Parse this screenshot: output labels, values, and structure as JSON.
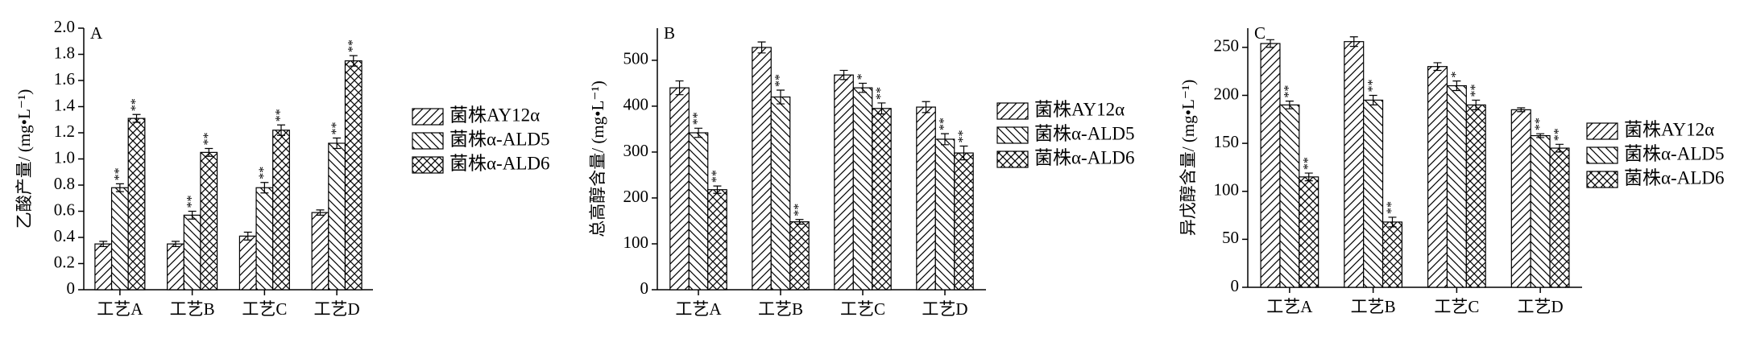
{
  "chart_data": [
    {
      "type": "bar",
      "label": "A",
      "ylabel": "乙酸产量/ (mg•L⁻¹)",
      "categories": [
        "工艺A",
        "工艺B",
        "工艺C",
        "工艺D"
      ],
      "series": [
        {
          "name": "菌株AY12α",
          "color": "#000000",
          "hatch": "/",
          "values": [
            0.35,
            0.35,
            0.41,
            0.59
          ],
          "errors": [
            0.02,
            0.02,
            0.03,
            0.02
          ],
          "annotations": [
            null,
            null,
            null,
            null
          ]
        },
        {
          "name": "菌株α-ALD5",
          "color": "#000000",
          "hatch": "\\",
          "values": [
            0.78,
            0.57,
            0.78,
            1.12
          ],
          "errors": [
            0.03,
            0.03,
            0.04,
            0.04
          ],
          "annotations": [
            "**",
            "**",
            "**",
            "**"
          ]
        },
        {
          "name": "菌株α-ALD6",
          "color": "#000000",
          "hatch": "x",
          "values": [
            1.31,
            1.05,
            1.22,
            1.75
          ],
          "errors": [
            0.03,
            0.03,
            0.04,
            0.04
          ],
          "annotations": [
            "**",
            "**",
            "**",
            "**"
          ]
        }
      ],
      "ylim": [
        0,
        2.0
      ],
      "yticks": [
        0,
        0.2,
        0.4,
        0.6,
        0.8,
        {
          "value": 1,
          "label": "1.0"
        },
        1.2,
        1.4,
        1.6,
        1.8,
        {
          "value": 2,
          "label": "2.0"
        }
      ],
      "legend": "right"
    },
    {
      "type": "bar",
      "label": "B",
      "ylabel": "总高醇含量/ (mg•L⁻¹)",
      "categories": [
        "工艺A",
        "工艺B",
        "工艺C",
        "工艺D"
      ],
      "series": [
        {
          "name": "菌株AY12α",
          "color": "#000000",
          "hatch": "/",
          "values": [
            440,
            528,
            468,
            398
          ],
          "errors": [
            15,
            12,
            10,
            12
          ],
          "annotations": [
            null,
            null,
            null,
            null
          ]
        },
        {
          "name": "菌株α-ALD5",
          "color": "#000000",
          "hatch": "\\",
          "values": [
            342,
            420,
            440,
            328
          ],
          "errors": [
            10,
            15,
            10,
            12
          ],
          "annotations": [
            "**",
            "**",
            "*",
            "**"
          ]
        },
        {
          "name": "菌株α-ALD6",
          "color": "#000000",
          "hatch": "x",
          "values": [
            218,
            148,
            395,
            298
          ],
          "errors": [
            8,
            5,
            12,
            15
          ],
          "annotations": [
            "**",
            "**",
            "**",
            "**"
          ]
        }
      ],
      "ylim": [
        0,
        570
      ],
      "yticks": [
        0,
        100,
        200,
        300,
        400,
        500
      ],
      "legend": "upper right"
    },
    {
      "type": "bar",
      "label": "C",
      "ylabel": "异戊醇含量/ (mg•L⁻¹)",
      "categories": [
        "工艺A",
        "工艺B",
        "工艺C",
        "工艺D"
      ],
      "series": [
        {
          "name": "菌株AY12α",
          "color": "#000000",
          "hatch": "/",
          "values": [
            254,
            256,
            230,
            185
          ],
          "errors": [
            4,
            5,
            4,
            2
          ],
          "annotations": [
            null,
            null,
            null,
            null
          ]
        },
        {
          "name": "菌株α-ALD5",
          "color": "#000000",
          "hatch": "\\",
          "values": [
            190,
            195,
            210,
            158
          ],
          "errors": [
            4,
            5,
            5,
            2
          ],
          "annotations": [
            "**",
            "**",
            "*",
            "**"
          ]
        },
        {
          "name": "菌株α-ALD6",
          "color": "#000000",
          "hatch": "x",
          "values": [
            115,
            68,
            190,
            145
          ],
          "errors": [
            4,
            5,
            5,
            4
          ],
          "annotations": [
            "**",
            "**",
            "**",
            "**"
          ]
        }
      ],
      "ylim": [
        0,
        270
      ],
      "yticks": [
        0,
        50,
        100,
        150,
        200,
        250
      ],
      "legend": "right"
    }
  ]
}
